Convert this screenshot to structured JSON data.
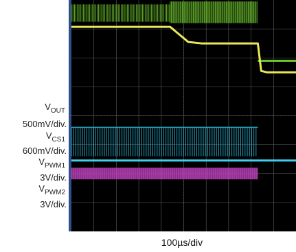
{
  "chart_data": {
    "type": "line",
    "x_axis": {
      "label": "100µs/div",
      "divisions": 10,
      "range": [
        0,
        10
      ]
    },
    "y_axis": {
      "divisions": 8,
      "range": [
        0,
        8
      ]
    },
    "grid": true,
    "grid_color": "#606060",
    "screen_background": "#000000",
    "series": [
      {
        "name_main": "V",
        "name_sub": "OUT",
        "scale": "500mV/div.",
        "color": "#6ec42e"
      },
      {
        "name_main": "V",
        "name_sub": "CS1",
        "scale": "600mV/div.",
        "color": "#e8e85a"
      },
      {
        "name_main": "V",
        "name_sub": "PWM1",
        "scale": "3V/div.",
        "color": "#27a9c8"
      },
      {
        "name_main": "V",
        "name_sub": "PWM2",
        "scale": "3V/div.",
        "color": "#b63fb5"
      }
    ],
    "traces": {
      "vout": {
        "pre": {
          "x": [
            0,
            4.4
          ],
          "low": 7.25,
          "high": 7.85
        },
        "mid": {
          "x": [
            4.4,
            8.3
          ],
          "low": 7.2,
          "high": 7.95
        },
        "post": {
          "x": [
            8.3,
            10
          ],
          "level": 5.9
        }
      },
      "vcs1": {
        "x": [
          0,
          4.4,
          5.2,
          5.8,
          7.2,
          8.3,
          8.45,
          8.7,
          10
        ],
        "y": [
          7.07,
          7.07,
          6.55,
          6.5,
          6.5,
          6.5,
          5.55,
          5.5,
          5.5
        ]
      },
      "vpwm1": {
        "x": [
          0,
          8.3
        ],
        "low": 2.6,
        "high": 3.6
      },
      "vpwm2": {
        "x": [
          0,
          8.3
        ],
        "low": 1.8,
        "high": 2.2
      },
      "pwm1_level": {
        "x": [
          0,
          10
        ],
        "y": 2.45
      }
    }
  }
}
